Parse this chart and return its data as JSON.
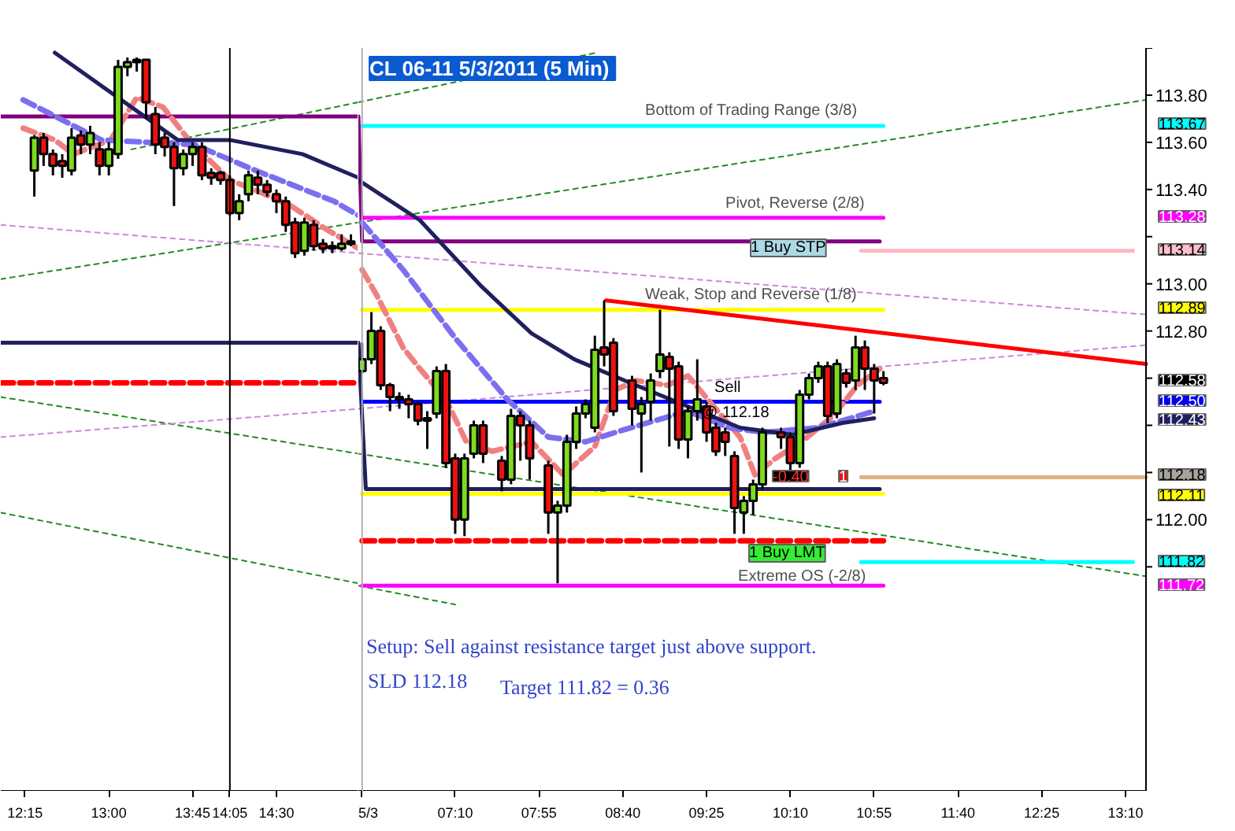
{
  "chart_data": [
    {
      "type": "candlestick",
      "x": [
        "2011-05-02T12:20",
        "2011-05-02T12:25",
        "2011-05-02T12:30",
        "2011-05-02T12:35",
        "2011-05-02T12:40",
        "2011-05-02T12:45",
        "2011-05-02T12:50",
        "2011-05-02T12:55",
        "2011-05-02T13:00",
        "2011-05-02T13:05",
        "2011-05-02T13:10",
        "2011-05-02T13:15",
        "2011-05-02T13:20",
        "2011-05-02T13:25",
        "2011-05-02T13:30",
        "2011-05-02T13:35",
        "2011-05-02T13:40",
        "2011-05-02T13:45",
        "2011-05-02T13:50",
        "2011-05-02T13:55",
        "2011-05-02T14:00",
        "2011-05-02T14:05",
        "2011-05-02T14:10",
        "2011-05-02T14:15",
        "2011-05-02T14:20",
        "2011-05-02T14:25",
        "2011-05-02T14:30",
        "2011-05-02T14:35",
        "2011-05-02T14:40",
        "2011-05-02T14:45",
        "2011-05-02T14:50",
        "2011-05-02T14:55",
        "2011-05-02T15:00",
        "2011-05-02T15:05",
        "2011-05-02T15:10"
      ],
      "ohlc": [
        [
          113.48,
          113.63,
          113.37,
          113.62
        ],
        [
          113.62,
          113.64,
          113.5,
          113.55
        ],
        [
          113.55,
          113.57,
          113.46,
          113.5
        ],
        [
          113.52,
          113.55,
          113.45,
          113.5
        ],
        [
          113.48,
          113.66,
          113.46,
          113.62
        ],
        [
          113.63,
          113.65,
          113.55,
          113.59
        ],
        [
          113.59,
          113.67,
          113.55,
          113.64
        ],
        [
          113.57,
          113.6,
          113.46,
          113.5
        ],
        [
          113.5,
          113.6,
          113.46,
          113.57
        ],
        [
          113.55,
          113.95,
          113.53,
          113.92
        ],
        [
          113.92,
          113.96,
          113.88,
          113.94
        ],
        [
          113.94,
          113.96,
          113.9,
          113.95
        ],
        [
          113.95,
          113.95,
          113.7,
          113.77
        ],
        [
          113.72,
          113.75,
          113.55,
          113.59
        ],
        [
          113.62,
          113.64,
          113.54,
          113.58
        ],
        [
          113.58,
          113.6,
          113.33,
          113.49
        ],
        [
          113.49,
          113.57,
          113.46,
          113.55
        ],
        [
          113.55,
          113.6,
          113.5,
          113.58
        ],
        [
          113.58,
          113.6,
          113.44,
          113.46
        ],
        [
          113.47,
          113.49,
          113.42,
          113.45
        ],
        [
          113.47,
          113.48,
          113.42,
          113.44
        ],
        [
          113.44,
          113.46,
          113.29,
          113.3
        ],
        [
          113.3,
          113.38,
          113.27,
          113.35
        ],
        [
          113.38,
          113.48,
          113.35,
          113.46
        ],
        [
          113.45,
          113.48,
          113.38,
          113.42
        ],
        [
          113.42,
          113.44,
          113.37,
          113.39
        ],
        [
          113.38,
          113.4,
          113.3,
          113.35
        ],
        [
          113.35,
          113.37,
          113.22,
          113.25
        ],
        [
          113.26,
          113.28,
          113.11,
          113.13
        ],
        [
          113.14,
          113.28,
          113.12,
          113.26
        ],
        [
          113.25,
          113.27,
          113.14,
          113.16
        ],
        [
          113.17,
          113.19,
          113.13,
          113.15
        ],
        [
          113.16,
          113.18,
          113.13,
          113.15
        ],
        [
          113.15,
          113.21,
          113.14,
          113.17
        ],
        [
          113.18,
          113.21,
          113.16,
          113.17
        ]
      ],
      "series": [
        {
          "type": "line",
          "color": "#228b22",
          "line_style": "dotted",
          "x": [
            "2011-05-02T12:02",
            "2011-05-02T15:14"
          ],
          "values": [
            112.03,
            111.73
          ]
        },
        {
          "type": "line",
          "color": "#228b22",
          "line_style": "dotted",
          "x": [
            "2011-05-02T12:02",
            "2011-05-02T15:14"
          ],
          "values": [
            112.52,
            112.28
          ]
        },
        {
          "type": "line",
          "color": "#228b22",
          "line_style": "dotted",
          "x": [
            "2011-05-02T12:02",
            "2011-05-02T15:14"
          ],
          "values": [
            113.02,
            113.26
          ]
        },
        {
          "type": "line",
          "color": "#228b22",
          "line_style": "dotted",
          "x": [
            "2011-05-02T13:12",
            "2011-05-02T15:14"
          ],
          "values": [
            113.57,
            113.77
          ]
        },
        {
          "type": "line",
          "color": "#cc88dd",
          "line_style": "dotted",
          "x": [
            "2011-05-02T12:02",
            "2011-05-02T15:14"
          ],
          "values": [
            113.25,
            113.13
          ]
        },
        {
          "type": "line",
          "color": "#cc88dd",
          "line_style": "dotted",
          "x": [
            "2011-05-02T12:02",
            "2011-05-02T15:14"
          ],
          "values": [
            112.35,
            112.47
          ]
        },
        {
          "type": "line",
          "color": "#800080",
          "line_style": "solid",
          "x": [
            "2011-05-02T12:02",
            "2011-05-02T15:14"
          ],
          "values": [
            113.71,
            113.71
          ]
        },
        {
          "type": "line",
          "color": "#20205e",
          "line_style": "solid",
          "x": [
            "2011-05-02T12:02",
            "2011-05-02T15:14"
          ],
          "values": [
            112.75,
            112.75
          ]
        },
        {
          "type": "line",
          "color": "#ff0000",
          "line_style": "dashed",
          "x": [
            "2011-05-02T12:02",
            "2011-05-02T15:14"
          ],
          "values": [
            112.58,
            112.58
          ]
        },
        {
          "type": "line",
          "color": "#f08080",
          "line_style": "dashed",
          "x": [
            "2011-05-02T12:14",
            "2011-05-02T12:31",
            "2011-05-02T12:41",
            "2011-05-02T13:01",
            "2011-05-02T13:15",
            "2011-05-02T13:29",
            "2011-05-02T13:43",
            "2011-05-02T14:05",
            "2011-05-02T14:21",
            "2011-05-02T14:38",
            "2011-05-02T14:55",
            "2011-05-02T15:14"
          ],
          "values": [
            113.66,
            113.61,
            113.55,
            113.61,
            113.79,
            113.75,
            113.61,
            113.44,
            113.39,
            113.33,
            113.24,
            113.15
          ]
        },
        {
          "type": "line",
          "color": "#7b6ff0",
          "line_style": "dashed",
          "x": [
            "2011-05-02T12:14",
            "2011-05-02T12:56",
            "2011-05-02T13:46",
            "2011-05-02T14:19",
            "2011-05-02T15:01",
            "2011-05-02T15:14"
          ],
          "values": [
            113.78,
            113.61,
            113.59,
            113.48,
            113.35,
            113.29
          ]
        },
        {
          "type": "line",
          "color": "#20205e",
          "line_style": "solid",
          "x": [
            "2011-05-02T12:31",
            "2011-05-02T13:37",
            "2011-05-02T14:05",
            "2011-05-02T14:44",
            "2011-05-02T15:14"
          ],
          "values": [
            113.98,
            113.61,
            113.61,
            113.55,
            113.45
          ]
        }
      ],
      "xlim": [
        "2011-05-02T12:02",
        "2011-05-02T15:14"
      ],
      "ylim": [
        110.85,
        114.0
      ],
      "xticks": [
        {
          "value": "2011-05-02T12:15",
          "label": "12:15"
        },
        {
          "value": "2011-05-02T13:00",
          "label": "13:00"
        },
        {
          "value": "2011-05-02T13:45",
          "label": "13:45"
        },
        {
          "value": "2011-05-02T14:30",
          "label": "14:30"
        }
      ],
      "tick_labels": "x",
      "ref_lines": [
        {
          "axis": "x",
          "value": "2011-05-02T14:05",
          "label": "14:05",
          "color": "#000000"
        }
      ],
      "grid": false
    },
    {
      "type": "candlestick",
      "title": "CL 06-11  5/3/2011 (5 Min)",
      "x": [
        "2011-05-03T06:20",
        "2011-05-03T06:25",
        "2011-05-03T06:30",
        "2011-05-03T06:35",
        "2011-05-03T06:40",
        "2011-05-03T06:45",
        "2011-05-03T06:50",
        "2011-05-03T06:55",
        "2011-05-03T07:00",
        "2011-05-03T07:05",
        "2011-05-03T07:10",
        "2011-05-03T07:15",
        "2011-05-03T07:20",
        "2011-05-03T07:25",
        "2011-05-03T07:35",
        "2011-05-03T07:40",
        "2011-05-03T07:45",
        "2011-05-03T07:50",
        "2011-05-03T08:00",
        "2011-05-03T08:05",
        "2011-05-03T08:10",
        "2011-05-03T08:15",
        "2011-05-03T08:20",
        "2011-05-03T08:25",
        "2011-05-03T08:30",
        "2011-05-03T08:35",
        "2011-05-03T08:45",
        "2011-05-03T08:50",
        "2011-05-03T08:55",
        "2011-05-03T09:00",
        "2011-05-03T09:05",
        "2011-05-03T09:10",
        "2011-05-03T09:15",
        "2011-05-03T09:20",
        "2011-05-03T09:25",
        "2011-05-03T09:30",
        "2011-05-03T09:35",
        "2011-05-03T09:40",
        "2011-05-03T09:45",
        "2011-05-03T09:50",
        "2011-05-03T09:55",
        "2011-05-03T10:05",
        "2011-05-03T10:10",
        "2011-05-03T10:15",
        "2011-05-03T10:20",
        "2011-05-03T10:25",
        "2011-05-03T10:30",
        "2011-05-03T10:35",
        "2011-05-03T10:40",
        "2011-05-03T10:45",
        "2011-05-03T10:50",
        "2011-05-03T10:55",
        "2011-05-03T11:00"
      ],
      "ohlc": [
        [
          112.63,
          112.75,
          112.62,
          112.68
        ],
        [
          112.68,
          112.88,
          112.66,
          112.8
        ],
        [
          112.8,
          112.82,
          112.55,
          112.57
        ],
        [
          112.57,
          112.58,
          112.46,
          112.52
        ],
        [
          112.52,
          112.54,
          112.47,
          112.51
        ],
        [
          112.51,
          112.53,
          112.43,
          112.49
        ],
        [
          112.49,
          112.5,
          112.4,
          112.42
        ],
        [
          112.43,
          112.46,
          112.3,
          112.42
        ],
        [
          112.45,
          112.65,
          112.43,
          112.63
        ],
        [
          112.63,
          112.66,
          112.22,
          112.24
        ],
        [
          112.26,
          112.28,
          111.94,
          112.0
        ],
        [
          112.0,
          112.28,
          111.93,
          112.26
        ],
        [
          112.28,
          112.42,
          112.26,
          112.4
        ],
        [
          112.4,
          112.42,
          112.24,
          112.28
        ],
        [
          112.25,
          112.27,
          112.12,
          112.17
        ],
        [
          112.17,
          112.47,
          112.15,
          112.44
        ],
        [
          112.44,
          112.46,
          112.25,
          112.4
        ],
        [
          112.4,
          112.42,
          112.17,
          112.26
        ],
        [
          112.23,
          112.25,
          111.94,
          112.03
        ],
        [
          112.03,
          112.08,
          111.73,
          112.06
        ],
        [
          112.06,
          112.36,
          112.03,
          112.33
        ],
        [
          112.33,
          112.48,
          112.3,
          112.45
        ],
        [
          112.45,
          112.51,
          112.43,
          112.49
        ],
        [
          112.39,
          112.78,
          112.37,
          112.72
        ],
        [
          112.73,
          112.93,
          112.65,
          112.7
        ],
        [
          112.75,
          112.77,
          112.44,
          112.46
        ],
        [
          112.59,
          112.61,
          112.4,
          112.47
        ],
        [
          112.45,
          112.52,
          112.2,
          112.49
        ],
        [
          112.5,
          112.62,
          112.42,
          112.59
        ],
        [
          112.63,
          112.89,
          112.6,
          112.7
        ],
        [
          112.69,
          112.71,
          112.31,
          112.64
        ],
        [
          112.65,
          112.67,
          112.3,
          112.34
        ],
        [
          112.34,
          112.48,
          112.26,
          112.46
        ],
        [
          112.46,
          112.68,
          112.42,
          112.51
        ],
        [
          112.48,
          112.5,
          112.33,
          112.37
        ],
        [
          112.39,
          112.41,
          112.27,
          112.29
        ],
        [
          112.37,
          112.39,
          112.27,
          112.33
        ],
        [
          112.27,
          112.29,
          111.94,
          112.05
        ],
        [
          112.03,
          112.1,
          111.94,
          112.08
        ],
        [
          112.08,
          112.17,
          112.02,
          112.15
        ],
        [
          112.15,
          112.39,
          112.13,
          112.37
        ],
        [
          112.37,
          112.39,
          112.3,
          112.35
        ],
        [
          112.35,
          112.37,
          112.2,
          112.24
        ],
        [
          112.24,
          112.55,
          112.22,
          112.53
        ],
        [
          112.53,
          112.62,
          112.51,
          112.6
        ],
        [
          112.6,
          112.67,
          112.58,
          112.65
        ],
        [
          112.65,
          112.67,
          112.41,
          112.44
        ],
        [
          112.45,
          112.68,
          112.43,
          112.66
        ],
        [
          112.62,
          112.64,
          112.56,
          112.58
        ],
        [
          112.59,
          112.78,
          112.55,
          112.73
        ],
        [
          112.73,
          112.76,
          112.55,
          112.64
        ],
        [
          112.64,
          112.66,
          112.45,
          112.59
        ],
        [
          112.6,
          112.63,
          112.57,
          112.58
        ]
      ],
      "series": [
        {
          "type": "line",
          "color": "#228b22",
          "line_style": "dotted",
          "x": [
            "2011-05-03T06:18",
            "2011-05-03T07:10"
          ],
          "values": [
            111.72,
            111.64
          ]
        },
        {
          "type": "line",
          "color": "#228b22",
          "line_style": "dotted",
          "x": [
            "2011-05-03T06:18",
            "2011-05-03T13:21"
          ],
          "values": [
            112.28,
            111.76
          ]
        },
        {
          "type": "line",
          "color": "#228b22",
          "line_style": "dotted",
          "x": [
            "2011-05-03T06:18",
            "2011-05-03T13:21"
          ],
          "values": [
            113.26,
            113.78
          ]
        },
        {
          "type": "line",
          "color": "#228b22",
          "line_style": "dotted",
          "x": [
            "2011-05-03T06:18",
            "2011-05-03T08:26"
          ],
          "values": [
            113.77,
            113.98
          ]
        },
        {
          "type": "line",
          "color": "#cc88dd",
          "line_style": "dotted",
          "x": [
            "2011-05-03T06:18",
            "2011-05-03T13:21"
          ],
          "values": [
            113.13,
            112.87
          ]
        },
        {
          "type": "line",
          "color": "#cc88dd",
          "line_style": "dotted",
          "x": [
            "2011-05-03T06:18",
            "2011-05-03T13:21"
          ],
          "values": [
            112.47,
            112.74
          ]
        },
        {
          "type": "line",
          "color": "#00ffff",
          "line_style": "solid",
          "x": [
            "2011-05-03T06:20",
            "2011-05-03T11:00"
          ],
          "values": [
            113.67,
            113.67
          ]
        },
        {
          "type": "line",
          "color": "#ff00ff",
          "line_style": "solid",
          "x": [
            "2011-05-03T06:20",
            "2011-05-03T11:00"
          ],
          "values": [
            113.28,
            113.28
          ]
        },
        {
          "type": "line",
          "color": "#800080",
          "line_style": "solid",
          "x": [
            "2011-05-03T06:18",
            "2011-05-03T06:20",
            "2011-05-03T10:58"
          ],
          "values": [
            113.71,
            113.18,
            113.18
          ]
        },
        {
          "type": "line",
          "color": "#ffff00",
          "line_style": "solid",
          "x": [
            "2011-05-03T06:20",
            "2011-05-03T11:00"
          ],
          "values": [
            112.89,
            112.89
          ]
        },
        {
          "type": "line",
          "color": "#20205e",
          "line_style": "solid",
          "x": [
            "2011-05-03T06:18",
            "2011-05-03T06:22",
            "2011-05-03T10:58"
          ],
          "values": [
            112.75,
            112.13,
            112.13
          ]
        },
        {
          "type": "line",
          "color": "#ffff00",
          "line_style": "solid",
          "x": [
            "2011-05-03T06:20",
            "2011-05-03T11:00"
          ],
          "values": [
            112.11,
            112.11
          ]
        },
        {
          "type": "line",
          "color": "#0000ff",
          "line_style": "solid",
          "x": [
            "2011-05-03T06:20",
            "2011-05-03T10:58"
          ],
          "values": [
            112.5,
            112.5
          ]
        },
        {
          "type": "line",
          "color": "#ff0000",
          "line_style": "dashed",
          "x": [
            "2011-05-03T06:20",
            "2011-05-03T11:00"
          ],
          "values": [
            111.91,
            111.91
          ]
        },
        {
          "type": "line",
          "color": "#ff00ff",
          "line_style": "solid",
          "x": [
            "2011-05-03T06:20",
            "2011-05-03T11:00"
          ],
          "values": [
            111.72,
            111.72
          ]
        },
        {
          "type": "line",
          "color": "#00ffff",
          "line_style": "solid",
          "x": [
            "2011-05-03T10:48",
            "2011-05-03T13:14"
          ],
          "values": [
            111.82,
            111.82
          ]
        },
        {
          "type": "line",
          "color": "#ffb6c1",
          "line_style": "solid",
          "x": [
            "2011-05-03T10:48",
            "2011-05-03T13:14"
          ],
          "values": [
            113.14,
            113.14
          ]
        },
        {
          "type": "line",
          "color": "#e0b080",
          "line_style": "solid",
          "x": [
            "2011-05-03T10:48",
            "2011-05-03T13:21"
          ],
          "values": [
            112.18,
            112.18
          ]
        },
        {
          "type": "line",
          "color": "#ff0000",
          "line_style": "solid",
          "x": [
            "2011-05-03T08:31",
            "2011-05-03T13:21"
          ],
          "values": [
            112.93,
            112.66
          ]
        },
        {
          "type": "line",
          "color": "#f08080",
          "line_style": "dashed",
          "x": [
            "2011-05-03T06:20",
            "2011-05-03T06:28",
            "2011-05-03T06:42",
            "2011-05-03T06:51",
            "2011-05-03T07:05",
            "2011-05-03T07:16",
            "2011-05-03T07:30",
            "2011-05-03T07:51",
            "2011-05-03T08:08",
            "2011-05-03T08:25",
            "2011-05-03T08:36",
            "2011-05-03T08:47",
            "2011-05-03T09:04",
            "2011-05-03T09:15",
            "2011-05-03T09:31",
            "2011-05-03T09:43",
            "2011-05-03T09:51",
            "2011-05-03T10:02",
            "2011-05-03T10:16",
            "2011-05-03T10:33",
            "2011-05-03T10:46",
            "2011-05-03T10:58"
          ],
          "values": [
            113.06,
            112.95,
            112.73,
            112.64,
            112.51,
            112.33,
            112.29,
            112.33,
            112.19,
            112.31,
            112.55,
            112.59,
            112.57,
            112.61,
            112.46,
            112.35,
            112.19,
            112.26,
            112.33,
            112.44,
            112.57,
            112.64
          ]
        },
        {
          "type": "line",
          "color": "#7b6ff0",
          "line_style": "dashed",
          "x": [
            "2011-05-03T06:20",
            "2011-05-03T06:42",
            "2011-05-03T07:10",
            "2011-05-03T07:38",
            "2011-05-03T08:00",
            "2011-05-03T08:20",
            "2011-05-03T08:36",
            "2011-05-03T08:53",
            "2011-05-03T09:15",
            "2011-05-03T09:37",
            "2011-05-03T09:56",
            "2011-05-03T10:25",
            "2011-05-03T10:55"
          ],
          "values": [
            113.26,
            113.06,
            112.77,
            112.51,
            112.35,
            112.33,
            112.37,
            112.41,
            112.46,
            112.39,
            112.37,
            112.39,
            112.46
          ]
        },
        {
          "type": "line",
          "color": "#20205e",
          "line_style": "solid",
          "x": [
            "2011-05-03T06:18",
            "2011-05-03T06:51",
            "2011-05-03T07:24",
            "2011-05-03T07:32",
            "2011-05-03T07:51",
            "2011-05-03T08:14",
            "2011-05-03T08:47",
            "2011-05-03T09:15",
            "2011-05-03T09:43",
            "2011-05-03T10:11",
            "2011-05-03T10:38",
            "2011-05-03T10:55"
          ],
          "values": [
            113.44,
            113.27,
            112.99,
            112.93,
            112.79,
            112.68,
            112.57,
            112.48,
            112.39,
            112.36,
            112.41,
            112.43
          ]
        }
      ],
      "xlim": [
        "2011-05-03T06:18",
        "2011-05-03T13:21"
      ],
      "ylim": [
        110.85,
        114.0
      ],
      "xticks": [
        {
          "value": "2011-05-03T06:20",
          "label": "5/3"
        },
        {
          "value": "2011-05-03T07:10",
          "label": "07:10"
        },
        {
          "value": "2011-05-03T07:55",
          "label": "07:55"
        },
        {
          "value": "2011-05-03T08:40",
          "label": "08:40"
        },
        {
          "value": "2011-05-03T09:25",
          "label": "09:25"
        },
        {
          "value": "2011-05-03T10:10",
          "label": "10:10"
        },
        {
          "value": "2011-05-03T10:55",
          "label": "10:55"
        },
        {
          "value": "2011-05-03T11:40",
          "label": "11:40"
        },
        {
          "value": "2011-05-03T12:25",
          "label": "12:25"
        },
        {
          "value": "2011-05-03T13:10",
          "label": "13:10"
        }
      ],
      "yticks": [
        {
          "value": 114.0,
          "label": null
        },
        {
          "value": 113.8,
          "label": "113.80"
        },
        {
          "value": 113.6,
          "label": "113.60"
        },
        {
          "value": 113.4,
          "label": "113.40"
        },
        {
          "value": 113.2,
          "label": null
        },
        {
          "value": 113.0,
          "label": "113.00"
        },
        {
          "value": 112.8,
          "label": "112.80"
        },
        {
          "value": 112.6,
          "label": null
        },
        {
          "value": 112.4,
          "label": null
        },
        {
          "value": 112.2,
          "label": null
        },
        {
          "value": 112.0,
          "label": "112.00"
        },
        {
          "value": 111.8,
          "label": null
        }
      ],
      "ref_lines": [
        {
          "axis": "x",
          "value": "2011-05-03T06:20",
          "color": "#b0b0b0"
        }
      ],
      "annotations": [
        "Bottom of Trading Range (3/8)",
        "Pivot, Reverse (2/8)",
        "Weak, Stop and Reverse (1/8)",
        "Extreme OS (-2/8)",
        "Sell",
        "@ 112.18",
        "-0.40",
        "1",
        "1 Buy STP",
        "1 Buy LMT",
        "113.67",
        "113.28",
        "113.14",
        "112.89",
        "112.58",
        "112.50",
        "112.43",
        "112.18",
        "112.11",
        "111.82",
        "111.72",
        "Setup: Sell against resistance target just above support.",
        "SLD 112.18",
        "Target 111.82 = 0.36"
      ],
      "grid": false
    }
  ]
}
